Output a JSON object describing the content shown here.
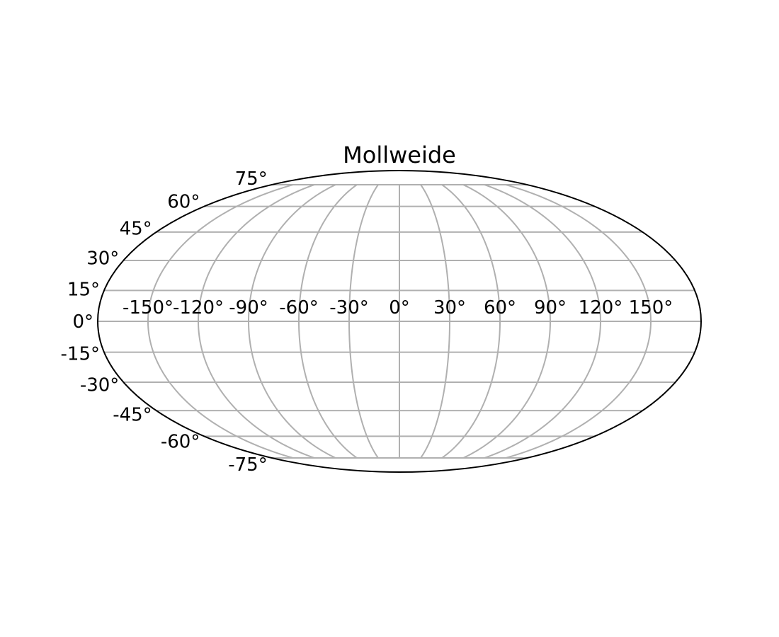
{
  "chart_data": {
    "type": "map",
    "projection": "Mollweide",
    "title": "Mollweide",
    "grid": true,
    "grid_color": "#b0b0b0",
    "frame_color": "#000000",
    "background": "#ffffff",
    "longitude_ticks": [
      -150,
      -120,
      -90,
      -60,
      -30,
      0,
      30,
      60,
      90,
      120,
      150
    ],
    "longitude_tick_labels": [
      "-150°",
      "-120°",
      "-90°",
      "-60°",
      "-30°",
      "0°",
      "30°",
      "60°",
      "90°",
      "120°",
      "150°"
    ],
    "latitude_ticks": [
      75,
      60,
      45,
      30,
      15,
      0,
      -15,
      -30,
      -45,
      -60,
      -75
    ],
    "latitude_tick_labels": [
      "75°",
      "60°",
      "45°",
      "30°",
      "15°",
      "0°",
      "-15°",
      "-30°",
      "-45°",
      "-60°",
      "-75°"
    ],
    "longitude_range": [
      -180,
      180
    ],
    "latitude_range": [
      -90,
      90
    ],
    "meridian_latitude_limit": 75
  }
}
